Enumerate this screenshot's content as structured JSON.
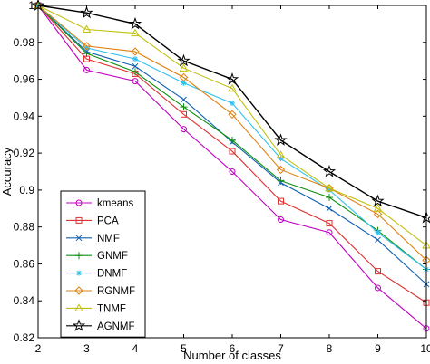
{
  "chart_data": {
    "type": "line",
    "xlabel": "Number of classes",
    "ylabel": "Accuracy",
    "xlim": [
      2,
      10
    ],
    "ylim": [
      0.82,
      1.0
    ],
    "grid": false,
    "legend_position": "bottom-left",
    "x": [
      2,
      3,
      4,
      5,
      6,
      7,
      8,
      9,
      10
    ],
    "x_tick_labels": [
      "2",
      "3",
      "4",
      "5",
      "6",
      "7",
      "8",
      "9",
      "10"
    ],
    "y_ticks": [
      0.82,
      0.84,
      0.86,
      0.88,
      0.9,
      0.92,
      0.94,
      0.96,
      0.98,
      1.0
    ],
    "y_tick_labels": [
      "0.82",
      "0.84",
      "0.86",
      "0.88",
      "0.9",
      "0.92",
      "0.94",
      "0.96",
      "0.98",
      "1"
    ],
    "series": [
      {
        "name": "kmeans",
        "color": "#c000c0",
        "marker": "circle",
        "values": [
          1.0,
          0.965,
          0.959,
          0.933,
          0.91,
          0.884,
          0.877,
          0.847,
          0.825
        ]
      },
      {
        "name": "PCA",
        "color": "#e03030",
        "marker": "square",
        "values": [
          1.0,
          0.971,
          0.963,
          0.941,
          0.921,
          0.894,
          0.882,
          0.856,
          0.839
        ]
      },
      {
        "name": "NMF",
        "color": "#1060b0",
        "marker": "x",
        "values": [
          1.0,
          0.975,
          0.967,
          0.949,
          0.926,
          0.904,
          0.89,
          0.873,
          0.849
        ]
      },
      {
        "name": "GNMF",
        "color": "#109010",
        "marker": "plus",
        "values": [
          1.0,
          0.974,
          0.964,
          0.945,
          0.927,
          0.905,
          0.896,
          0.878,
          0.857
        ]
      },
      {
        "name": "DNMF",
        "color": "#30c0f0",
        "marker": "asterisk",
        "values": [
          1.0,
          0.977,
          0.971,
          0.958,
          0.947,
          0.917,
          0.9,
          0.877,
          0.857
        ]
      },
      {
        "name": "RGNMF",
        "color": "#e08010",
        "marker": "diamond",
        "values": [
          1.0,
          0.978,
          0.975,
          0.961,
          0.941,
          0.911,
          0.901,
          0.887,
          0.862
        ]
      },
      {
        "name": "TNMF",
        "color": "#c0c010",
        "marker": "triangle",
        "values": [
          1.0,
          0.987,
          0.985,
          0.966,
          0.955,
          0.919,
          0.901,
          0.89,
          0.87
        ]
      },
      {
        "name": "AGNMF",
        "color": "#000000",
        "marker": "star",
        "values": [
          1.0,
          0.996,
          0.99,
          0.97,
          0.96,
          0.927,
          0.91,
          0.894,
          0.885
        ]
      }
    ]
  }
}
